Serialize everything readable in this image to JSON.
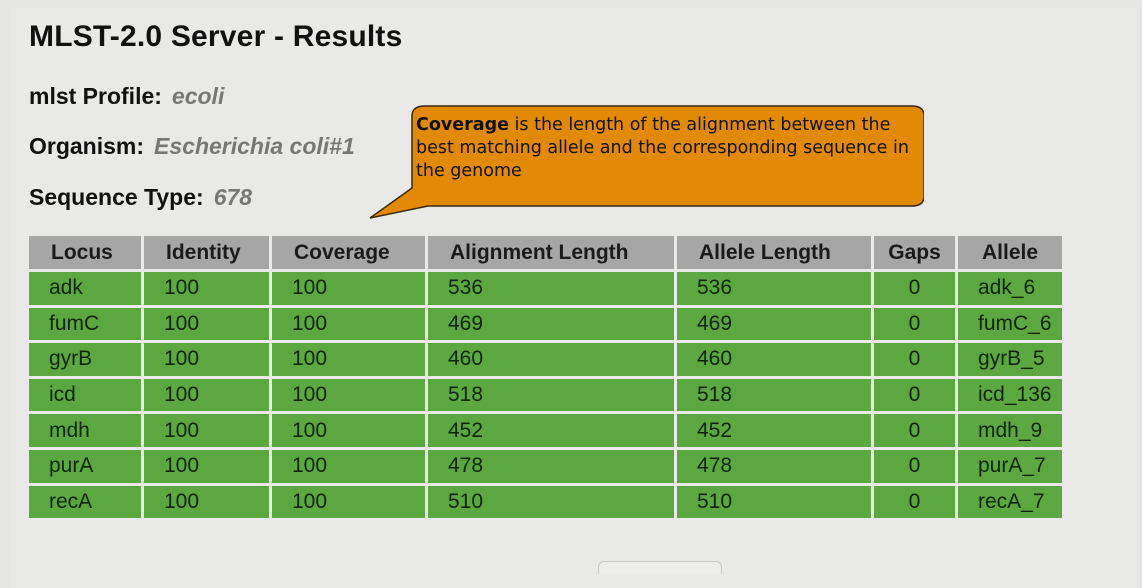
{
  "page": {
    "title": "MLST-2.0 Server - Results"
  },
  "summary": {
    "profile_label": "mlst Profile:",
    "profile_value": "ecoli",
    "organism_label": "Organism:",
    "organism_value": "Escherichia coli#1",
    "sequence_type_label": "Sequence Type:",
    "sequence_type_value": "678"
  },
  "tooltip": {
    "term": "Coverage",
    "text": " is the length of the alignment between the best matching allele and the corresponding sequence in the genome"
  },
  "table": {
    "columns": [
      "Locus",
      "Identity",
      "Coverage",
      "Alignment Length",
      "Allele Length",
      "Gaps",
      "Allele"
    ],
    "rows": [
      [
        "adk",
        "100",
        "100",
        "536",
        "536",
        "0",
        "adk_6"
      ],
      [
        "fumC",
        "100",
        "100",
        "469",
        "469",
        "0",
        "fumC_6"
      ],
      [
        "gyrB",
        "100",
        "100",
        "460",
        "460",
        "0",
        "gyrB_5"
      ],
      [
        "icd",
        "100",
        "100",
        "518",
        "518",
        "0",
        "icd_136"
      ],
      [
        "mdh",
        "100",
        "100",
        "452",
        "452",
        "0",
        "mdh_9"
      ],
      [
        "purA",
        "100",
        "100",
        "478",
        "478",
        "0",
        "purA_7"
      ],
      [
        "recA",
        "100",
        "100",
        "510",
        "510",
        "0",
        "recA_7"
      ]
    ]
  },
  "colors": {
    "header_bg": "#a6a6a6",
    "row_bg": "#5aa83f",
    "tooltip_bg": "#e28a06"
  }
}
